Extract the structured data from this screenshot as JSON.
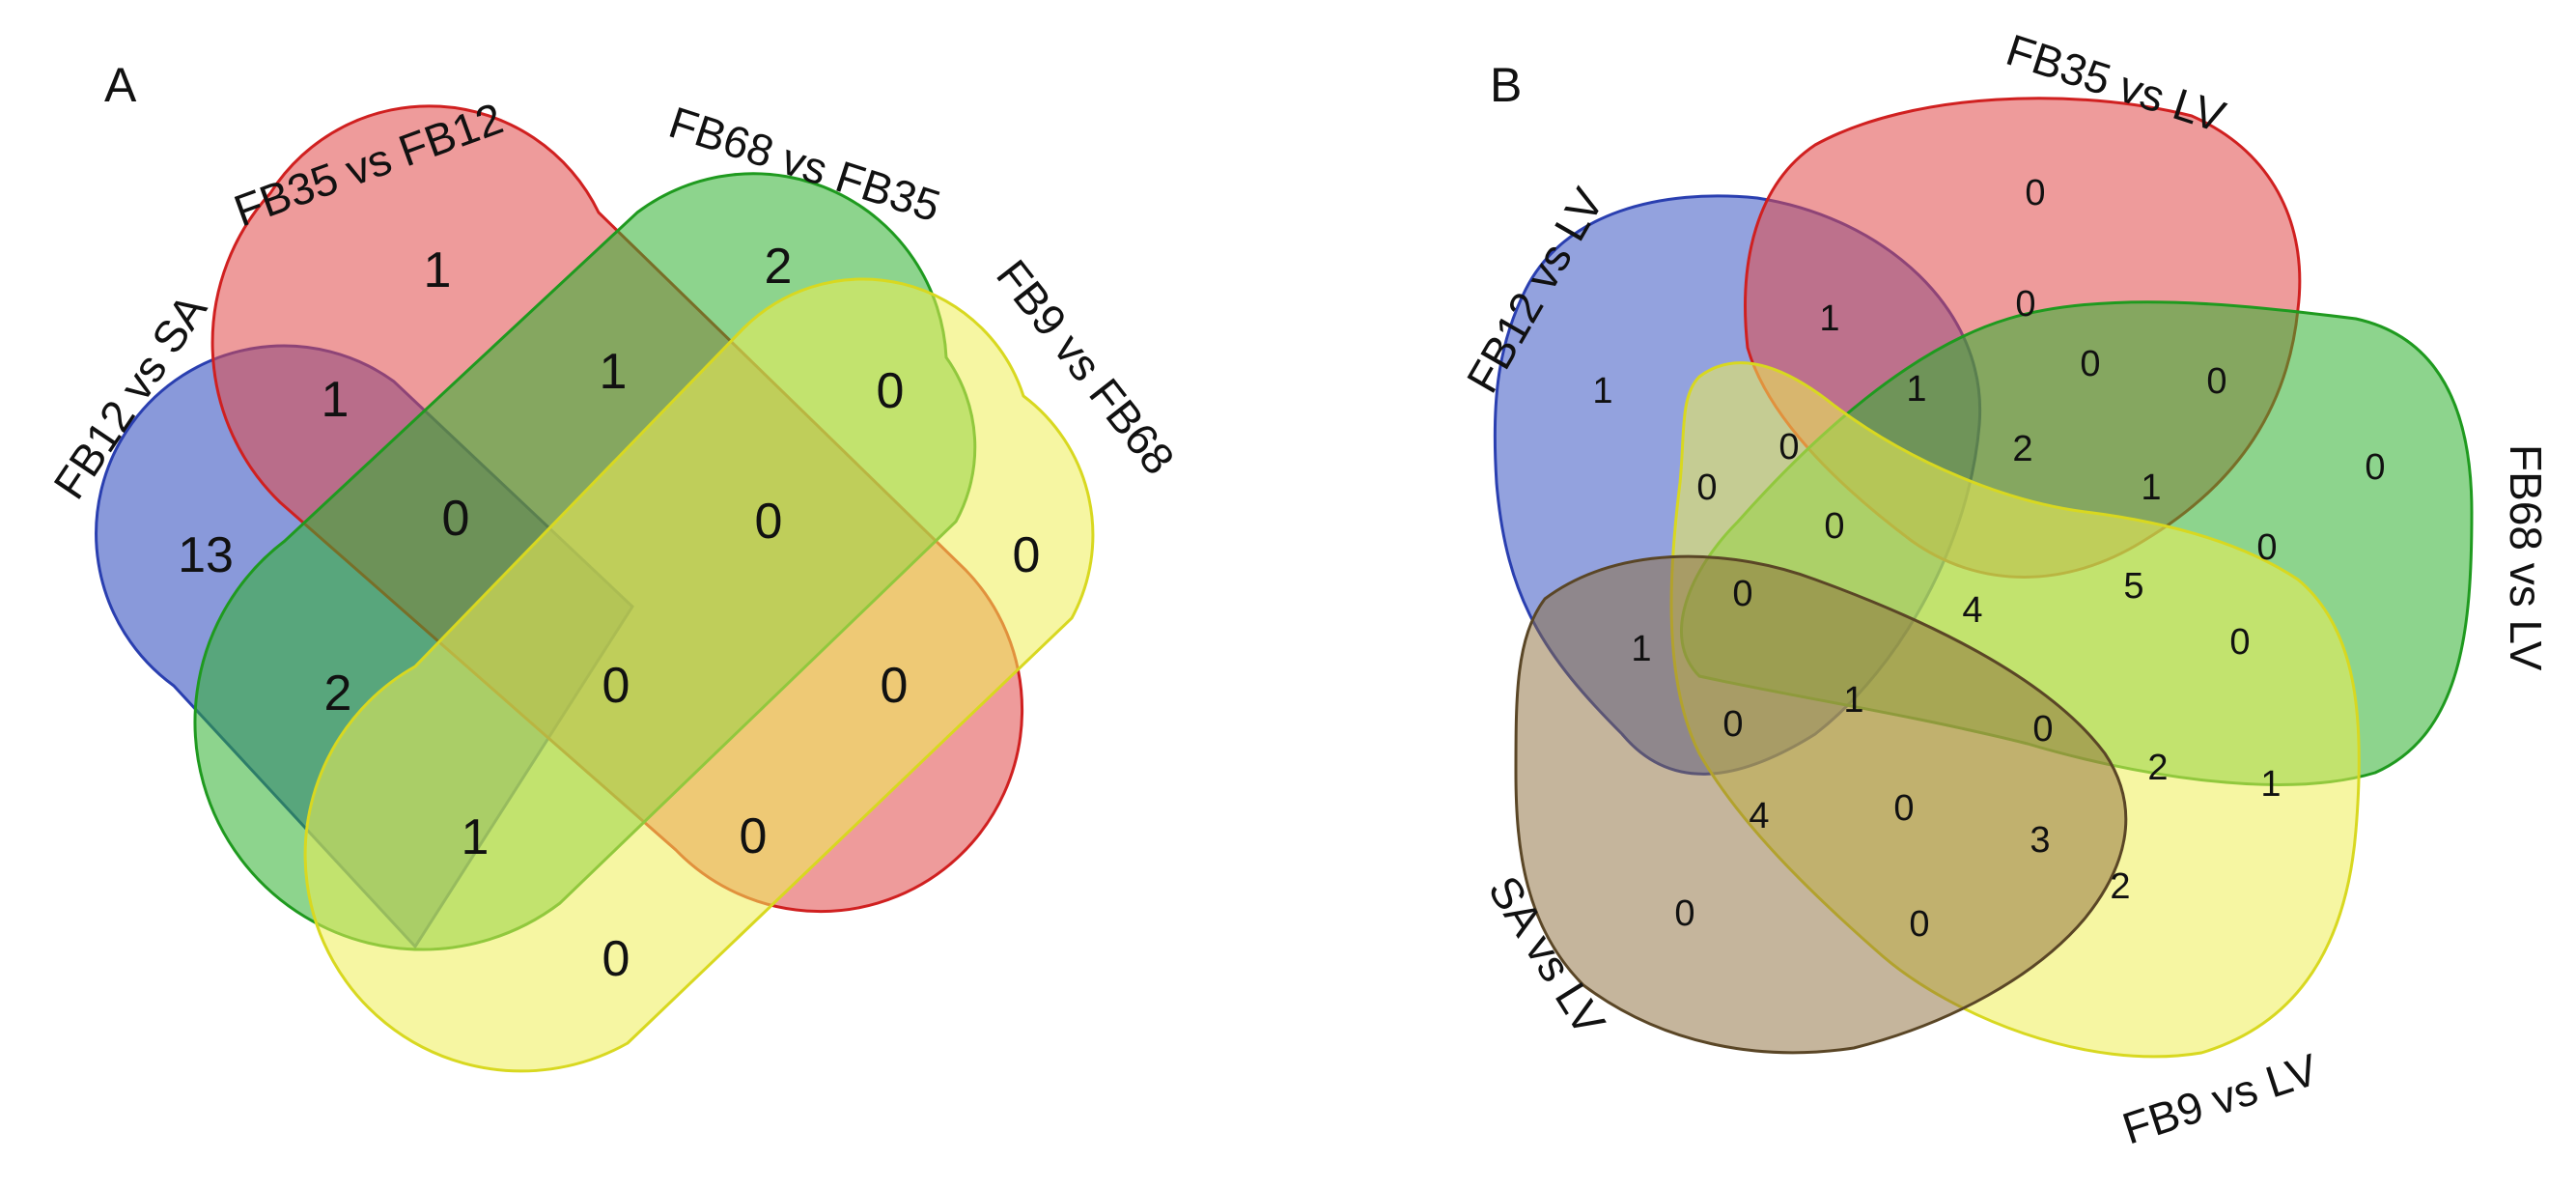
{
  "panels": {
    "A": {
      "letter": "A",
      "sets": {
        "s1": {
          "name": "FB12 vs SA",
          "color": "#3a55c2"
        },
        "s2": {
          "name": "FB35 vs FB12",
          "color": "#dd2a2a"
        },
        "s3": {
          "name": "FB68 vs FB35",
          "color": "#2fb02f"
        },
        "s4": {
          "name": "FB9 vs FB68",
          "color": "#e8e83a"
        }
      },
      "regions": {
        "only_fb12_sa": "13",
        "only_fb35_fb12": "1",
        "only_fb68_fb35": "2",
        "only_fb9_fb68": "0",
        "fb12_fb35": "1",
        "fb35_fb68": "1",
        "fb68_fb9": "0",
        "fb12_fb68": "2",
        "fb35_fb9": "0",
        "fb12_fb35_fb68": "0",
        "fb35_fb68_fb9": "0",
        "all_four": "0",
        "fb12_fb68_fb9": "1",
        "fb12_fb35_fb9": "0",
        "fb12_fb9": "0"
      }
    },
    "B": {
      "letter": "B",
      "sets": {
        "s1": {
          "name": "FB12 vs LV",
          "color": "#3a55c2"
        },
        "s2": {
          "name": "FB35 vs LV",
          "color": "#dd2a2a"
        },
        "s3": {
          "name": "FB68 vs LV",
          "color": "#2fb02f"
        },
        "s4": {
          "name": "FB9 vs LV",
          "color": "#e8e83a"
        },
        "s5": {
          "name": "SA vs LV",
          "color": "#8c6b3a"
        }
      },
      "regions": {
        "r01": "0",
        "r02": "1",
        "r03": "0",
        "r04": "0",
        "r05": "0",
        "r06": "1",
        "r07": "1",
        "r08": "2",
        "r09": "1",
        "r10": "0",
        "r11": "0",
        "r12": "0",
        "r13": "0",
        "r14": "4",
        "r15": "5",
        "r16": "0",
        "r17": "0",
        "r18": "1",
        "r19": "0",
        "r20": "1",
        "r21": "0",
        "r22": "0",
        "r23": "2",
        "r24": "1",
        "r25": "4",
        "r26": "0",
        "r27": "3",
        "r28": "0",
        "r29": "0",
        "r30": "2"
      }
    }
  }
}
